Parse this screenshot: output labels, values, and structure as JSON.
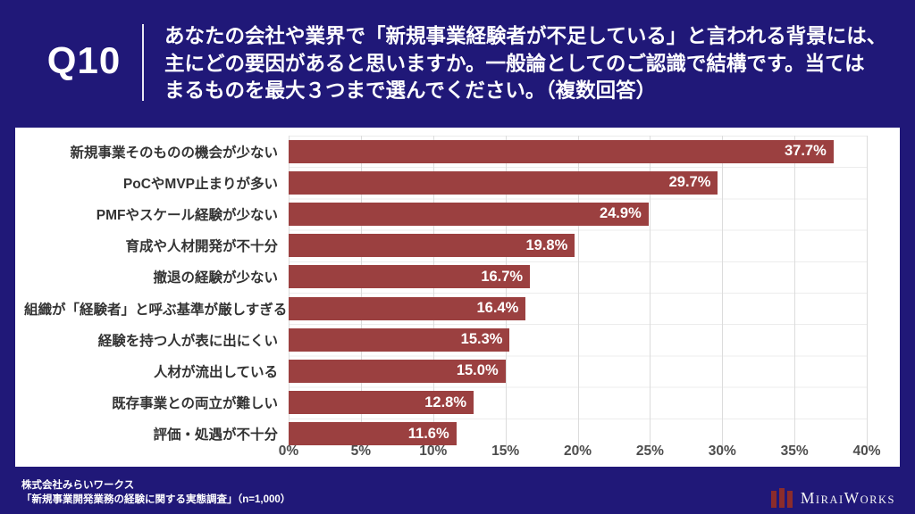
{
  "header": {
    "question_number": "Q10",
    "question_lines": [
      "あなたの会社や業界で「新規事業経験者が不足している」と言われる背景には、",
      "主にどの要因があると思いますか。一般論としてのご認識で結構です。当ては",
      "まるものを最大３つまで選んでください。（複数回答）"
    ]
  },
  "chart_data": {
    "type": "bar",
    "orientation": "horizontal",
    "categories": [
      "新規事業そのものの機会が少ない",
      "PoCやMVP止まりが多い",
      "PMFやスケール経験が少ない",
      "育成や人材開発が不十分",
      "撤退の経験が少ない",
      "組織が「経験者」と呼ぶ基準が厳しすぎる",
      "経験を持つ人が表に出にくい",
      "人材が流出している",
      "既存事業との両立が難しい",
      "評価・処遇が不十分"
    ],
    "values": [
      37.7,
      29.7,
      24.9,
      19.8,
      16.7,
      16.4,
      15.3,
      15.0,
      12.8,
      11.6
    ],
    "value_labels": [
      "37.7%",
      "29.7%",
      "24.9%",
      "19.8%",
      "16.7%",
      "16.4%",
      "15.3%",
      "15.0%",
      "12.8%",
      "11.6%"
    ],
    "xlim": [
      0,
      40
    ],
    "x_ticks": [
      "0%",
      "5%",
      "10%",
      "15%",
      "20%",
      "25%",
      "30%",
      "35%",
      "40%"
    ],
    "grid": true,
    "legend_position": "none",
    "bar_color": "#9b4040"
  },
  "footer": {
    "company": "株式会社みらいワークス",
    "survey": "「新規事業開発業務の経験に関する実態調査」（n=1,000）",
    "logo": {
      "part1": "M",
      "part2": "IRAI",
      "part3": "W",
      "part4": "ORKS"
    }
  },
  "colors": {
    "background": "#201878",
    "panel": "#ffffff",
    "bar": "#9b4040",
    "grid_line": "#dcdcdc",
    "row_line": "#ececec",
    "category_text": "#333333",
    "axis_text": "#4d4d4d",
    "header_text": "#ffffff",
    "logo_icon": "#8b2c2c"
  }
}
